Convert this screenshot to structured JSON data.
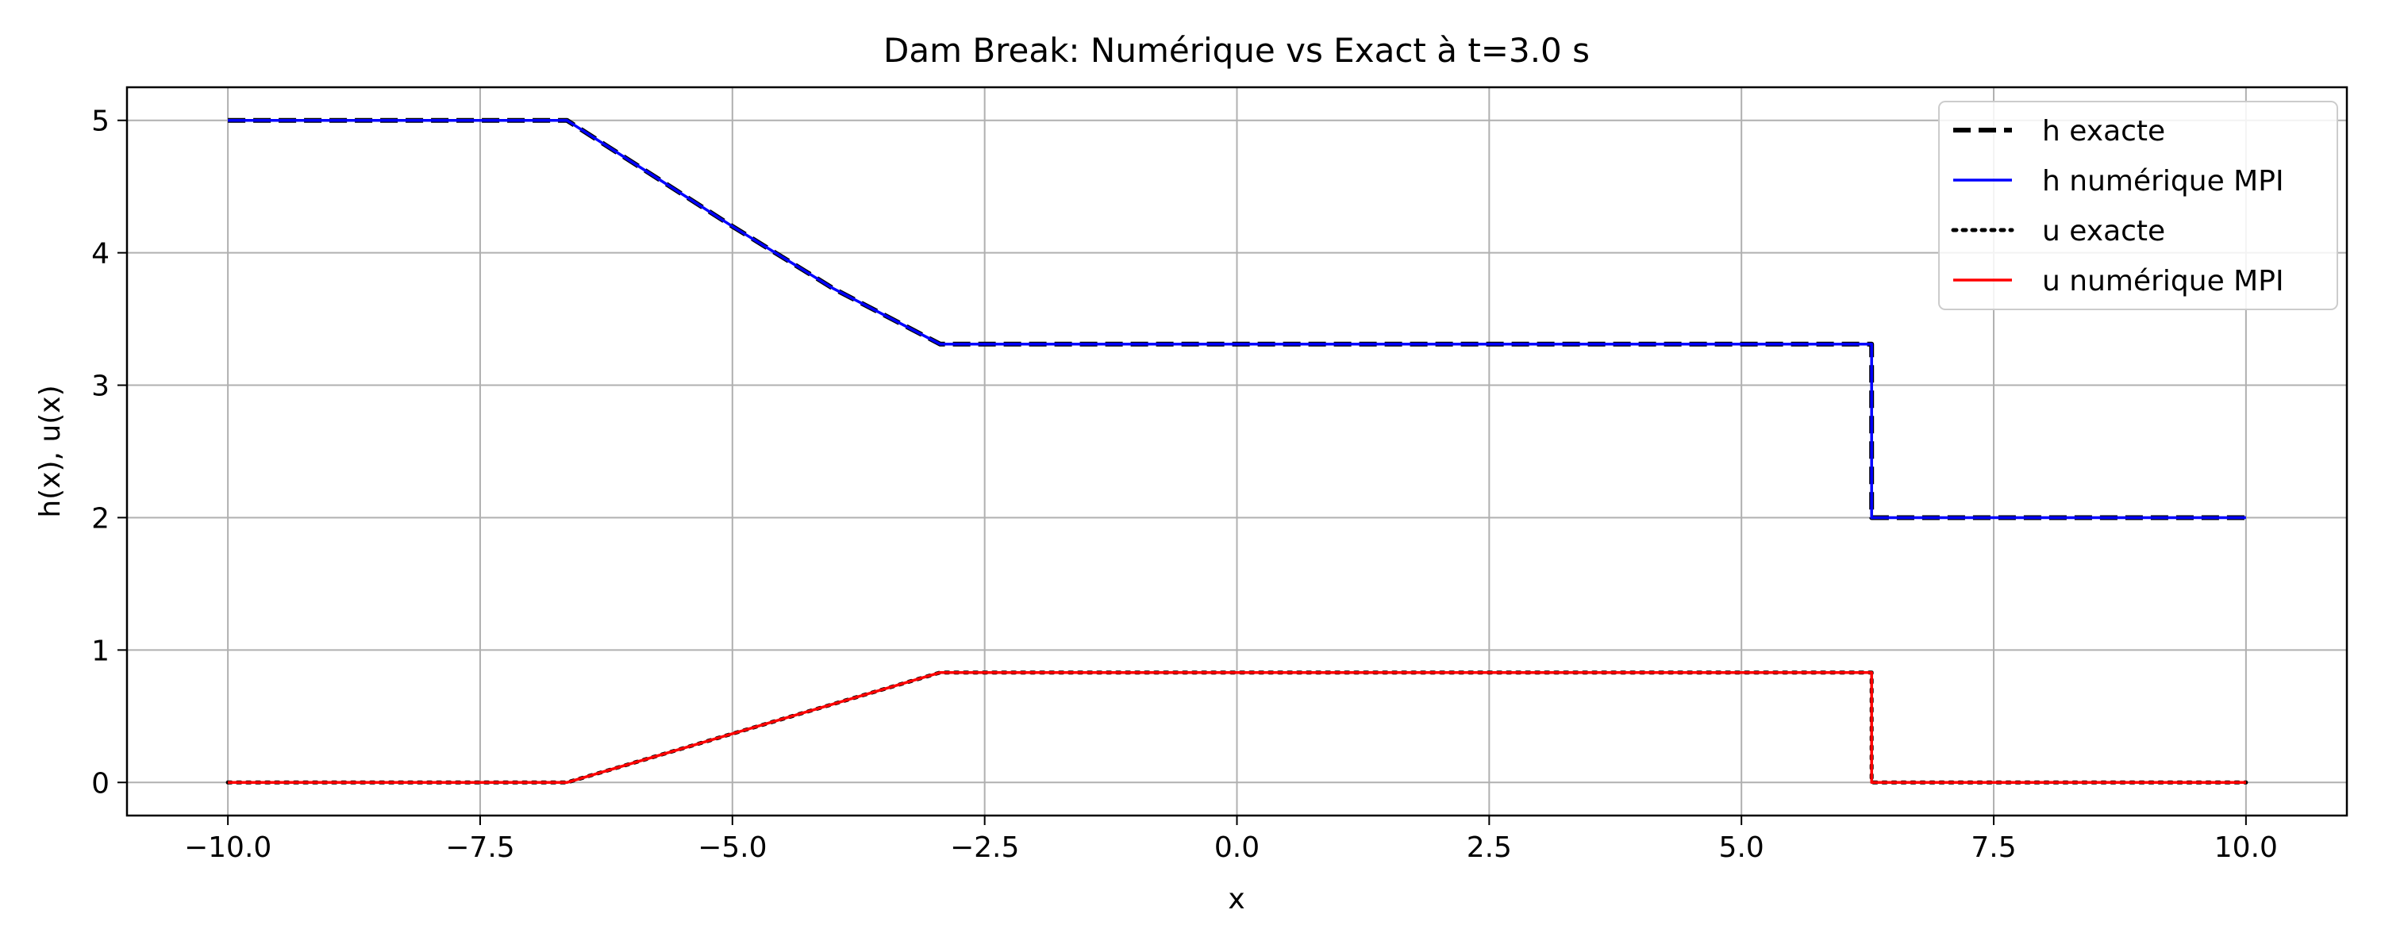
{
  "chart_data": {
    "type": "line",
    "title": "Dam Break: Numérique vs Exact à t=3.0 s",
    "xlabel": "x",
    "ylabel": "h(x), u(x)",
    "xlim": [
      -11,
      11
    ],
    "ylim": [
      -0.25,
      5.25
    ],
    "xticks": [
      -10,
      -7.5,
      -5,
      -2.5,
      0,
      2.5,
      5,
      7.5,
      10
    ],
    "xtick_labels": [
      "−10.0",
      "−7.5",
      "−5.0",
      "−2.5",
      "0.0",
      "2.5",
      "5.0",
      "7.5",
      "10.0"
    ],
    "yticks": [
      0,
      1,
      2,
      3,
      4,
      5
    ],
    "ytick_labels": [
      "0",
      "1",
      "2",
      "3",
      "4",
      "5"
    ],
    "grid": true,
    "legend_position": "top-right",
    "series": [
      {
        "name": "h exacte",
        "color": "#000000",
        "style": "dashed",
        "x": [
          -10,
          -6.64,
          -5.0,
          -4.0,
          -2.94,
          6.29,
          6.29,
          10
        ],
        "y": [
          5.0,
          5.0,
          4.2,
          3.73,
          3.31,
          3.31,
          2.0,
          2.0
        ]
      },
      {
        "name": "h numérique MPI",
        "color": "#0000ff",
        "style": "solid",
        "x": [
          -10,
          -6.64,
          -5.0,
          -4.0,
          -2.94,
          6.29,
          6.29,
          10
        ],
        "y": [
          5.0,
          5.0,
          4.2,
          3.73,
          3.31,
          3.31,
          2.0,
          2.0
        ]
      },
      {
        "name": "u exacte",
        "color": "#000000",
        "style": "dotted",
        "x": [
          -10,
          -6.64,
          -2.94,
          6.29,
          6.29,
          10
        ],
        "y": [
          0.0,
          0.0,
          0.83,
          0.83,
          0.0,
          0.0
        ]
      },
      {
        "name": "u numérique MPI",
        "color": "#ff0000",
        "style": "solid",
        "x": [
          -10,
          -6.64,
          -2.94,
          6.29,
          6.29,
          10
        ],
        "y": [
          0.0,
          0.0,
          0.83,
          0.83,
          0.0,
          0.0
        ]
      }
    ]
  }
}
